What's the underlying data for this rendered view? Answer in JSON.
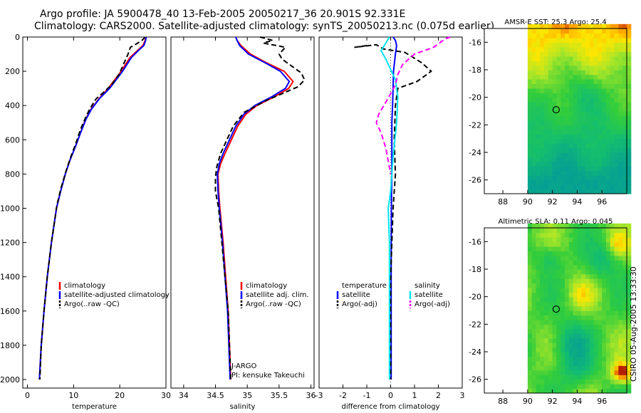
{
  "header": {
    "line1": "Argo profile: JA 5900478_40 13-Feb-2005 20050217_36 20.901S 92.331E",
    "line2": "Climatology: CARS2000. Satellite-adjusted climatology: synTS_20050213.nc (0.075d earlier)"
  },
  "colors": {
    "climatology": "#ff0000",
    "satellite": "#0000ff",
    "argo": "#000000",
    "sal_satellite": "#00e5ee",
    "sal_argo": "#ff00ff"
  },
  "chart_data": [
    {
      "type": "line",
      "id": "temperature",
      "xlabel": "temperature",
      "ylabel": "",
      "xlim": [
        -1,
        30
      ],
      "ylim": [
        2050,
        0
      ],
      "xticks": [
        "0",
        "10",
        "20",
        "30"
      ],
      "xtick_values": [
        0,
        10,
        20,
        30
      ],
      "yticks": [
        "0",
        "200",
        "400",
        "600",
        "800",
        "1000",
        "1200",
        "1400",
        "1600",
        "1800",
        "2000"
      ],
      "ytick_values": [
        0,
        200,
        400,
        600,
        800,
        1000,
        1200,
        1400,
        1600,
        1800,
        2000
      ],
      "legend": [
        "climatology",
        "satellite-adjusted climatology",
        "Argo(..raw -QC)"
      ],
      "series": [
        {
          "name": "climatology",
          "color": "#ff0000",
          "style": "solid",
          "points": [
            [
              25.6,
              0
            ],
            [
              25.5,
              20
            ],
            [
              25.0,
              50
            ],
            [
              23.8,
              80
            ],
            [
              22.2,
              120
            ],
            [
              20.3,
              200
            ],
            [
              17.5,
              300
            ],
            [
              15.5,
              360
            ],
            [
              13.8,
              420
            ],
            [
              12.6,
              480
            ],
            [
              11.5,
              560
            ],
            [
              10.4,
              640
            ],
            [
              9.2,
              720
            ],
            [
              8.2,
              800
            ],
            [
              7.2,
              900
            ],
            [
              6.3,
              1000
            ],
            [
              5.2,
              1200
            ],
            [
              4.3,
              1400
            ],
            [
              3.6,
              1600
            ],
            [
              3.0,
              1800
            ],
            [
              2.6,
              2000
            ]
          ]
        },
        {
          "name": "satellite-adjusted climatology",
          "color": "#0000ff",
          "style": "solid",
          "points": [
            [
              25.7,
              0
            ],
            [
              25.6,
              20
            ],
            [
              25.2,
              50
            ],
            [
              24.0,
              80
            ],
            [
              22.5,
              120
            ],
            [
              20.6,
              200
            ],
            [
              17.8,
              300
            ],
            [
              15.6,
              360
            ],
            [
              13.9,
              420
            ],
            [
              12.7,
              480
            ],
            [
              11.5,
              560
            ],
            [
              10.4,
              640
            ],
            [
              9.2,
              720
            ],
            [
              8.2,
              800
            ],
            [
              7.2,
              900
            ],
            [
              6.3,
              1000
            ],
            [
              5.2,
              1200
            ],
            [
              4.3,
              1400
            ],
            [
              3.6,
              1600
            ],
            [
              3.0,
              1800
            ],
            [
              2.6,
              2000
            ]
          ]
        },
        {
          "name": "Argo(..raw -QC)",
          "color": "#000000",
          "style": "dashed",
          "points": [
            [
              25.5,
              0
            ],
            [
              24.8,
              20
            ],
            [
              23.6,
              40
            ],
            [
              22.3,
              60
            ],
            [
              21.8,
              100
            ],
            [
              20.8,
              160
            ],
            [
              19.8,
              220
            ],
            [
              18.2,
              280
            ],
            [
              16.6,
              320
            ],
            [
              14.9,
              360
            ],
            [
              13.5,
              420
            ],
            [
              12.6,
              470
            ],
            [
              11.5,
              540
            ],
            [
              10.5,
              620
            ],
            [
              9.4,
              700
            ],
            [
              8.4,
              780
            ],
            [
              7.3,
              880
            ],
            [
              6.4,
              980
            ],
            [
              5.2,
              1200
            ],
            [
              4.3,
              1400
            ],
            [
              3.6,
              1600
            ],
            [
              3.0,
              1800
            ],
            [
              2.7,
              2000
            ]
          ]
        }
      ]
    },
    {
      "type": "line",
      "id": "salinity",
      "xlabel": "salinity",
      "ylabel": "",
      "xlim": [
        33.8,
        36.05
      ],
      "ylim": [
        2050,
        0
      ],
      "xticks": [
        "34",
        "34.5",
        "35",
        "35.5",
        "36"
      ],
      "xtick_values": [
        34,
        34.5,
        35,
        35.5,
        36
      ],
      "legend": [
        "climatology",
        "satellite adj. clim.",
        "Argo(..raw -QC)"
      ],
      "annotation": [
        "J-ARGO",
        "PI: kensuke Takeuchi"
      ],
      "series": [
        {
          "name": "climatology",
          "color": "#ff0000",
          "style": "solid",
          "points": [
            [
              34.82,
              0
            ],
            [
              34.84,
              20
            ],
            [
              34.9,
              50
            ],
            [
              35.05,
              100
            ],
            [
              35.3,
              150
            ],
            [
              35.58,
              200
            ],
            [
              35.72,
              260
            ],
            [
              35.65,
              300
            ],
            [
              35.42,
              350
            ],
            [
              35.15,
              400
            ],
            [
              34.98,
              450
            ],
            [
              34.85,
              520
            ],
            [
              34.75,
              600
            ],
            [
              34.65,
              680
            ],
            [
              34.58,
              740
            ],
            [
              34.54,
              800
            ],
            [
              34.55,
              900
            ],
            [
              34.57,
              1000
            ],
            [
              34.62,
              1200
            ],
            [
              34.66,
              1400
            ],
            [
              34.7,
              1600
            ],
            [
              34.72,
              1800
            ],
            [
              34.74,
              2000
            ]
          ]
        },
        {
          "name": "satellite adj. clim.",
          "color": "#0000ff",
          "style": "solid",
          "points": [
            [
              34.82,
              0
            ],
            [
              34.84,
              20
            ],
            [
              34.88,
              50
            ],
            [
              35.02,
              100
            ],
            [
              35.28,
              150
            ],
            [
              35.52,
              200
            ],
            [
              35.66,
              260
            ],
            [
              35.6,
              300
            ],
            [
              35.38,
              350
            ],
            [
              35.12,
              400
            ],
            [
              34.95,
              450
            ],
            [
              34.82,
              520
            ],
            [
              34.72,
              600
            ],
            [
              34.62,
              680
            ],
            [
              34.56,
              740
            ],
            [
              34.53,
              800
            ],
            [
              34.54,
              900
            ],
            [
              34.56,
              1000
            ],
            [
              34.61,
              1200
            ],
            [
              34.65,
              1400
            ],
            [
              34.69,
              1600
            ],
            [
              34.71,
              1800
            ],
            [
              34.73,
              2000
            ]
          ]
        },
        {
          "name": "Argo(..raw -QC)",
          "color": "#000000",
          "style": "dashed",
          "points": [
            [
              35.2,
              0
            ],
            [
              35.4,
              20
            ],
            [
              35.25,
              35
            ],
            [
              35.6,
              60
            ],
            [
              35.55,
              80
            ],
            [
              35.5,
              100
            ],
            [
              35.55,
              130
            ],
            [
              35.7,
              170
            ],
            [
              35.85,
              210
            ],
            [
              35.9,
              250
            ],
            [
              35.8,
              290
            ],
            [
              35.55,
              330
            ],
            [
              35.3,
              370
            ],
            [
              35.15,
              400
            ],
            [
              34.95,
              440
            ],
            [
              34.78,
              520
            ],
            [
              34.68,
              600
            ],
            [
              34.58,
              680
            ],
            [
              34.52,
              760
            ],
            [
              34.5,
              820
            ],
            [
              34.5,
              900
            ],
            [
              34.55,
              1000
            ],
            [
              34.6,
              1200
            ],
            [
              34.65,
              1400
            ],
            [
              34.7,
              1600
            ],
            [
              34.72,
              1800
            ],
            [
              34.74,
              2000
            ]
          ]
        }
      ]
    },
    {
      "type": "line",
      "id": "difference",
      "xlabel": "difference from climatology",
      "ylabel": "",
      "xlim": [
        -3,
        3
      ],
      "ylim": [
        2050,
        0
      ],
      "xticks": [
        "-3",
        "-2",
        "-1",
        "0",
        "1",
        "2",
        "3"
      ],
      "xtick_values": [
        -3,
        -2,
        -1,
        0,
        1,
        2,
        3
      ],
      "legend_temperature": [
        "temperature",
        "satellite",
        "Argo(-adj)"
      ],
      "legend_salinity": [
        "salinity",
        "satellite",
        "Argo(-adj)"
      ],
      "series": [
        {
          "name": "temperature satellite",
          "color": "#0000ff",
          "style": "solid",
          "points": [
            [
              0.1,
              0
            ],
            [
              0.2,
              20
            ],
            [
              0.25,
              50
            ],
            [
              0.2,
              100
            ],
            [
              0.12,
              200
            ],
            [
              0.1,
              300
            ],
            [
              0.08,
              400
            ],
            [
              0.05,
              500
            ],
            [
              0.05,
              600
            ],
            [
              0.05,
              800
            ],
            [
              0.03,
              1000
            ],
            [
              0.02,
              1400
            ],
            [
              0.02,
              2000
            ]
          ]
        },
        {
          "name": "temperature Argo(-adj)",
          "color": "#000000",
          "style": "dashed",
          "points": [
            [
              -1.0,
              50
            ],
            [
              -1.5,
              60
            ],
            [
              -0.6,
              45
            ],
            [
              -0.3,
              70
            ],
            [
              0.6,
              90
            ],
            [
              1.3,
              150
            ],
            [
              1.7,
              200
            ],
            [
              1.1,
              260
            ],
            [
              0.3,
              300
            ],
            [
              0.2,
              400
            ],
            [
              0.15,
              600
            ],
            [
              0.2,
              800
            ],
            [
              0.1,
              1000
            ],
            [
              0.0,
              1400
            ],
            [
              0.0,
              2000
            ]
          ]
        },
        {
          "name": "salinity satellite",
          "color": "#00e5ee",
          "style": "solid",
          "points": [
            [
              -0.05,
              0
            ],
            [
              -0.4,
              80
            ],
            [
              -0.2,
              130
            ],
            [
              0.2,
              250
            ],
            [
              0.3,
              350
            ],
            [
              0.25,
              500
            ],
            [
              0.1,
              700
            ],
            [
              0.0,
              900
            ],
            [
              -0.1,
              1000
            ],
            [
              -0.05,
              1200
            ],
            [
              -0.05,
              1600
            ],
            [
              -0.05,
              2000
            ]
          ]
        },
        {
          "name": "salinity Argo(-adj)",
          "color": "#ff00ff",
          "style": "dashed",
          "points": [
            [
              2.5,
              0
            ],
            [
              2.3,
              10
            ],
            [
              1.8,
              60
            ],
            [
              1.0,
              100
            ],
            [
              0.5,
              160
            ],
            [
              0.3,
              220
            ],
            [
              0.2,
              280
            ],
            [
              -0.2,
              380
            ],
            [
              -0.5,
              450
            ],
            [
              -0.6,
              500
            ],
            [
              -0.4,
              560
            ],
            [
              -0.2,
              650
            ],
            [
              0.0,
              800
            ]
          ]
        }
      ],
      "zero_line": true
    },
    {
      "type": "heatmap",
      "id": "sst_map",
      "title": "AMSR-E SST: 25.3 Argo: 25.4",
      "xlim": [
        86.5,
        98
      ],
      "ylim": [
        -27,
        -15
      ],
      "xticks": [
        "88",
        "90",
        "92",
        "94",
        "96"
      ],
      "xtick_values": [
        88,
        90,
        92,
        94,
        96
      ],
      "yticks": [
        "-16",
        "-18",
        "-20",
        "-22",
        "-24",
        "-26"
      ],
      "ytick_values": [
        -16,
        -18,
        -20,
        -22,
        -24,
        -26
      ],
      "data_lon_range": [
        90,
        98
      ],
      "marker": [
        92.3,
        -20.9
      ]
    },
    {
      "type": "heatmap",
      "id": "sla_map",
      "title": "Altimetric SLA: 0.11 Argo: 0.045",
      "xlim": [
        86.5,
        98
      ],
      "ylim": [
        -27,
        -15
      ],
      "xticks": [
        "88",
        "90",
        "92",
        "94",
        "96"
      ],
      "xtick_values": [
        88,
        90,
        92,
        94,
        96
      ],
      "yticks": [
        "-16",
        "-18",
        "-20",
        "-22",
        "-24",
        "-26"
      ],
      "ytick_values": [
        -16,
        -18,
        -20,
        -22,
        -24,
        -26
      ],
      "data_lon_range": [
        90,
        98
      ],
      "marker": [
        92.3,
        -20.9
      ]
    }
  ],
  "footer": {
    "stamp": "CSIRO 05-Aug-2005 13:33:30"
  }
}
